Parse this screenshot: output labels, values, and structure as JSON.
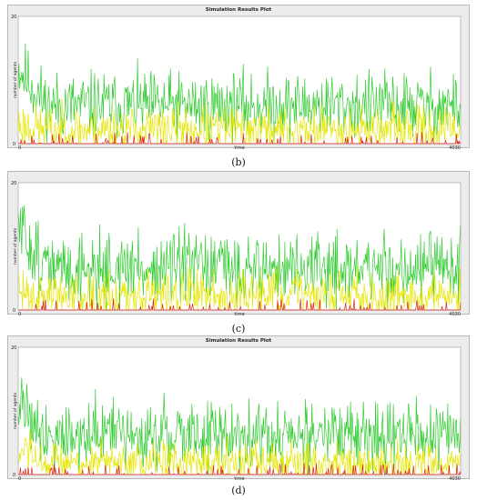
{
  "chart_data": [
    {
      "type": "line",
      "title": "Simulation Results Plot",
      "xlabel": "time",
      "ylabel": "number of agents",
      "xlim": [
        0,
        4030
      ],
      "ylim": [
        0,
        20
      ],
      "x_tick_labels": [
        "0",
        "4030"
      ],
      "y_tick_labels": [
        "0",
        "20"
      ],
      "caption": "(b)",
      "grid": false,
      "series": [
        {
          "color": "#33cc33",
          "mean": 6.0,
          "spread": 2.6,
          "start": 12,
          "seed": 11
        },
        {
          "color": "#e6e600",
          "mean": 2.2,
          "spread": 1.8,
          "start": 3,
          "seed": 23
        },
        {
          "color": "#dd2222",
          "mean": 0.0,
          "spread": 0.6,
          "start": 0,
          "seed": 37
        }
      ]
    },
    {
      "type": "line",
      "title": "",
      "xlabel": "time",
      "ylabel": "number of agents",
      "xlim": [
        0,
        4030
      ],
      "ylim": [
        0,
        20
      ],
      "x_tick_labels": [
        "0",
        "4030"
      ],
      "y_tick_labels": [
        "0",
        "20"
      ],
      "caption": "(c)",
      "grid": false,
      "series": [
        {
          "color": "#33cc33",
          "mean": 6.5,
          "spread": 2.8,
          "start": 13,
          "seed": 51
        },
        {
          "color": "#e6e600",
          "mean": 2.4,
          "spread": 1.9,
          "start": 3,
          "seed": 63
        },
        {
          "color": "#dd2222",
          "mean": 0.0,
          "spread": 0.3,
          "start": 0,
          "seed": 77
        }
      ]
    },
    {
      "type": "line",
      "title": "Simulation Results Plot",
      "xlabel": "time",
      "ylabel": "number of agents",
      "xlim": [
        0,
        4030
      ],
      "ylim": [
        0,
        20
      ],
      "x_tick_labels": [
        "0",
        "4030"
      ],
      "y_tick_labels": [
        "0",
        "20"
      ],
      "caption": "(d)",
      "grid": false,
      "series": [
        {
          "color": "#33cc33",
          "mean": 6.2,
          "spread": 2.6,
          "start": 12,
          "seed": 91
        },
        {
          "color": "#e6e600",
          "mean": 1.8,
          "spread": 1.6,
          "start": 3,
          "seed": 103
        },
        {
          "color": "#dd2222",
          "mean": 0.0,
          "spread": 0.5,
          "start": 0,
          "seed": 117
        }
      ]
    }
  ]
}
